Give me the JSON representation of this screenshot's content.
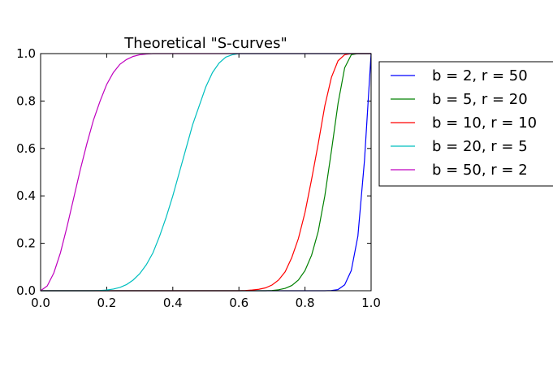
{
  "chart_data": {
    "type": "line",
    "title": "Theoretical \"S-curves\"",
    "xlabel": "",
    "ylabel": "",
    "xlim": [
      0.0,
      1.0
    ],
    "ylim": [
      0.0,
      1.0
    ],
    "grid": false,
    "legend_placement": "outside-right",
    "x_ticks": [
      "0.0",
      "0.2",
      "0.4",
      "0.6",
      "0.8",
      "1.0"
    ],
    "y_ticks": [
      "0.0",
      "0.2",
      "0.4",
      "0.6",
      "0.8",
      "1.0"
    ],
    "x_tick_values": [
      0.0,
      0.2,
      0.4,
      0.6,
      0.8,
      1.0
    ],
    "y_tick_values": [
      0.0,
      0.2,
      0.4,
      0.6,
      0.8,
      1.0
    ],
    "x": [
      0.0,
      0.02,
      0.04,
      0.06,
      0.08,
      0.1,
      0.12,
      0.14,
      0.16,
      0.18,
      0.2,
      0.22,
      0.24,
      0.26,
      0.28,
      0.3,
      0.32,
      0.34,
      0.36,
      0.38,
      0.4,
      0.42,
      0.44,
      0.46,
      0.48,
      0.5,
      0.52,
      0.54,
      0.56,
      0.58,
      0.6,
      0.62,
      0.64,
      0.66,
      0.68,
      0.7,
      0.72,
      0.74,
      0.76,
      0.78,
      0.8,
      0.82,
      0.84,
      0.86,
      0.88,
      0.9,
      0.92,
      0.94,
      0.96,
      0.98,
      1.0
    ],
    "series": [
      {
        "name": "b = 2, r = 50",
        "color": "#0000ff",
        "values": [
          0,
          0,
          0,
          0,
          0,
          0,
          0,
          0,
          0,
          0,
          0,
          0,
          0,
          0,
          0,
          0,
          0,
          0,
          0,
          0,
          0,
          0,
          0,
          0,
          0,
          0,
          0,
          0,
          0,
          0,
          0,
          0,
          0,
          0,
          0,
          0,
          0,
          0,
          0,
          0,
          0,
          0,
          0,
          0,
          0.001,
          0.005,
          0.025,
          0.085,
          0.23,
          0.55,
          1.0
        ]
      },
      {
        "name": "b = 5, r = 20",
        "color": "#008000",
        "values": [
          0,
          0,
          0,
          0,
          0,
          0,
          0,
          0,
          0,
          0,
          0,
          0,
          0,
          0,
          0,
          0,
          0,
          0,
          0,
          0,
          0,
          0,
          0,
          0,
          0,
          0,
          0,
          0,
          0,
          0,
          0,
          0,
          0,
          0,
          0,
          0.001,
          0.004,
          0.01,
          0.022,
          0.045,
          0.085,
          0.15,
          0.25,
          0.4,
          0.59,
          0.79,
          0.94,
          0.995,
          1.0,
          1.0,
          1.0
        ]
      },
      {
        "name": "b = 10, r = 10",
        "color": "#ff0000",
        "values": [
          0,
          0,
          0,
          0,
          0,
          0,
          0,
          0,
          0,
          0,
          0,
          0,
          0,
          0,
          0,
          0,
          0,
          0,
          0,
          0,
          0,
          0,
          0,
          0,
          0,
          0,
          0,
          0,
          0,
          0,
          0,
          0.001,
          0.003,
          0.006,
          0.012,
          0.024,
          0.045,
          0.08,
          0.14,
          0.22,
          0.33,
          0.47,
          0.62,
          0.78,
          0.9,
          0.97,
          0.995,
          1.0,
          1.0,
          1.0,
          1.0
        ]
      },
      {
        "name": "b = 20, r = 5",
        "color": "#00bfbf",
        "values": [
          0,
          0,
          0,
          0,
          0,
          0,
          0,
          0,
          0,
          0.001,
          0.003,
          0.007,
          0.014,
          0.026,
          0.045,
          0.072,
          0.11,
          0.16,
          0.23,
          0.31,
          0.4,
          0.5,
          0.6,
          0.7,
          0.78,
          0.86,
          0.92,
          0.96,
          0.985,
          0.995,
          1.0,
          1.0,
          1.0,
          1.0,
          1.0,
          1.0,
          1.0,
          1.0,
          1.0,
          1.0,
          1.0,
          1.0,
          1.0,
          1.0,
          1.0,
          1.0,
          1.0,
          1.0,
          1.0,
          1.0,
          1.0
        ]
      },
      {
        "name": "b = 50, r = 2",
        "color": "#bf00bf",
        "values": [
          0,
          0.02,
          0.075,
          0.16,
          0.27,
          0.39,
          0.51,
          0.62,
          0.72,
          0.8,
          0.87,
          0.92,
          0.955,
          0.975,
          0.988,
          0.995,
          0.998,
          1.0,
          1.0,
          1.0,
          1.0,
          1.0,
          1.0,
          1.0,
          1.0,
          1.0,
          1.0,
          1.0,
          1.0,
          1.0,
          1.0,
          1.0,
          1.0,
          1.0,
          1.0,
          1.0,
          1.0,
          1.0,
          1.0,
          1.0,
          1.0,
          1.0,
          1.0,
          1.0,
          1.0,
          1.0,
          1.0,
          1.0,
          1.0,
          1.0,
          1.0
        ]
      }
    ]
  }
}
